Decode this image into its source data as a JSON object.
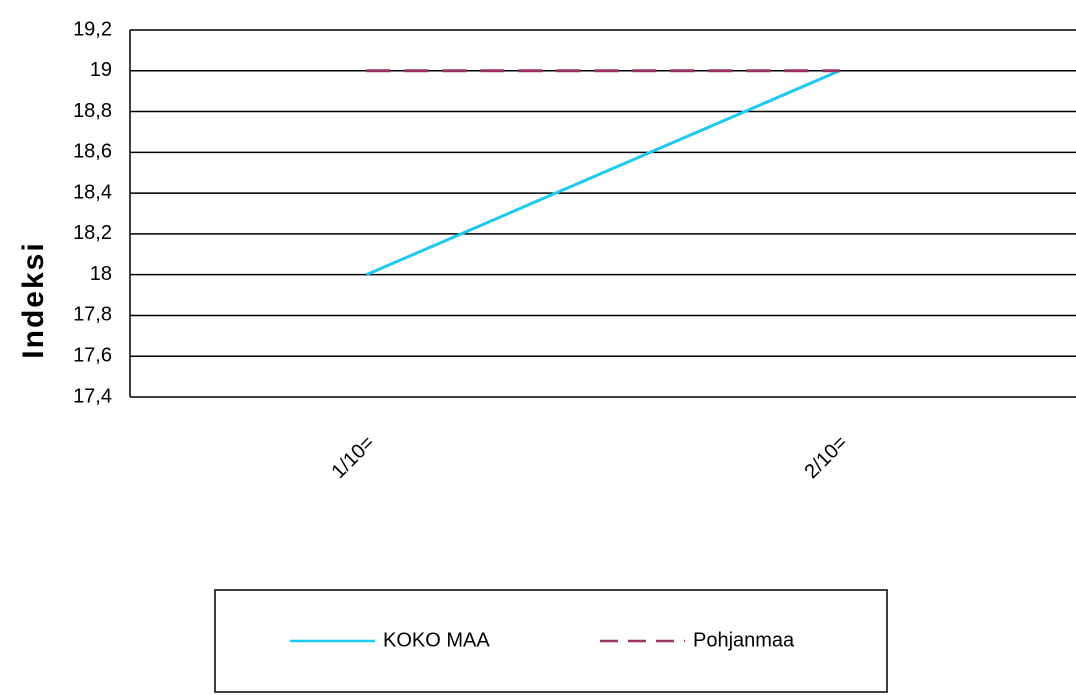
{
  "chart_data": {
    "type": "line",
    "y_label": "Indeksi",
    "categories": [
      "1/10=",
      "2/10="
    ],
    "series": [
      {
        "name": "KOKO MAA",
        "color": "#1ec8f0",
        "dash": false,
        "values": [
          18,
          19
        ]
      },
      {
        "name": "Pohjanmaa",
        "color": "#993366",
        "dash": true,
        "values": [
          19,
          19
        ]
      }
    ],
    "ylim": [
      17.4,
      19.2
    ],
    "yticks": [
      {
        "value": 17.4,
        "label": "17,4"
      },
      {
        "value": 17.6,
        "label": "17,6"
      },
      {
        "value": 17.8,
        "label": "17,8"
      },
      {
        "value": 18,
        "label": "18"
      },
      {
        "value": 18.2,
        "label": "18,2"
      },
      {
        "value": 18.4,
        "label": "18,4"
      },
      {
        "value": 18.6,
        "label": "18,6"
      },
      {
        "value": 18.8,
        "label": "18,8"
      },
      {
        "value": 19,
        "label": "19"
      },
      {
        "value": 19.2,
        "label": "19,2"
      }
    ],
    "grid": true,
    "legend": "bottom"
  }
}
